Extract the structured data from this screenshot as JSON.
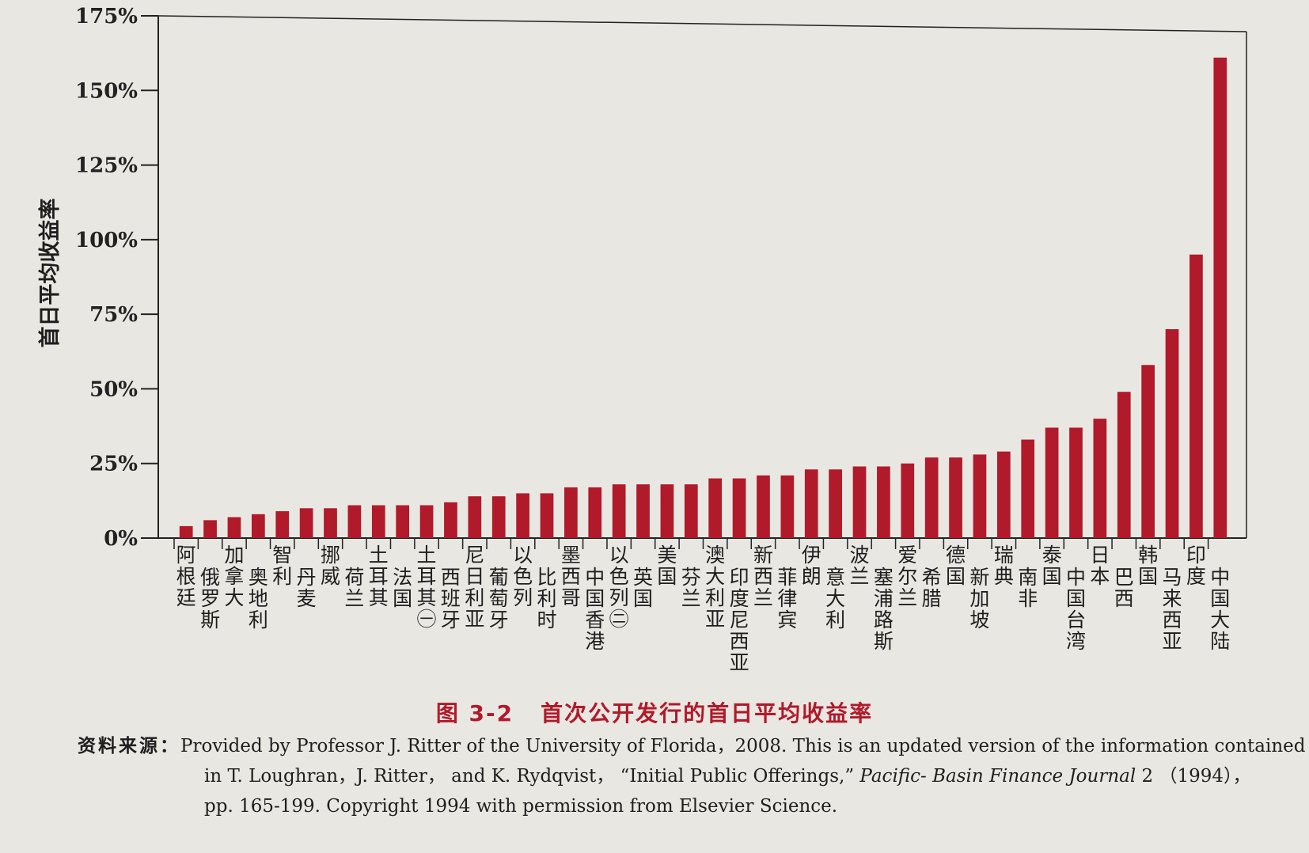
{
  "chart_data": {
    "type": "bar",
    "ylabel": "首日平均收益率",
    "ylim": [
      0,
      175
    ],
    "yticks": [
      0,
      25,
      50,
      75,
      100,
      125,
      150,
      175
    ],
    "ytick_labels": [
      "0%",
      "25%",
      "50%",
      "75%",
      "100%",
      "125%",
      "150%",
      "175%"
    ],
    "bar_color": "#b01a2a",
    "grid": false,
    "categories": [
      "阿根廷",
      "俄罗斯",
      "加拿大",
      "奥地利",
      "智利",
      "丹麦",
      "挪威",
      "荷兰",
      "土耳其",
      "法国",
      "土耳其㊀",
      "西班牙",
      "尼日利亚",
      "葡萄牙",
      "以色列",
      "比利时",
      "墨西哥",
      "中国香港",
      "以色列㊁",
      "英国",
      "美国",
      "芬兰",
      "澳大利亚",
      "印度尼西亚",
      "新西兰",
      "菲律宾",
      "伊朗",
      "意大利",
      "波兰",
      "塞浦路斯",
      "爱尔兰",
      "希腊",
      "德国",
      "新加坡",
      "瑞典",
      "南非",
      "泰国",
      "中国台湾",
      "日本",
      "巴西",
      "韩国",
      "马来西亚",
      "印度",
      "中国大陆"
    ],
    "values": [
      4,
      6,
      7,
      8,
      9,
      10,
      10,
      11,
      11,
      11,
      11,
      12,
      14,
      14,
      15,
      15,
      17,
      17,
      18,
      18,
      18,
      18,
      20,
      20,
      21,
      21,
      23,
      23,
      24,
      24,
      25,
      27,
      27,
      28,
      29,
      33,
      37,
      37,
      40,
      49,
      58,
      70,
      95,
      161
    ]
  },
  "caption": {
    "figure_number": "图 3-2",
    "title": "首次公开发行的首日平均收益率"
  },
  "source": {
    "label": "资料来源：",
    "line1": "Provided by Professor J. Ritter of the University of Florida，2008. This is an updated version of the information contained",
    "line2_a": "in T. Loughran，J. Ritter， and K. Rydqvist，  “Initial Public Offerings,”",
    "line2_journal": "Pacific- Basin Finance Journal",
    "line2_b": "2 （1994），",
    "line3": "pp. 165-199. Copyright 1994 with permission from Elsevier Science."
  }
}
